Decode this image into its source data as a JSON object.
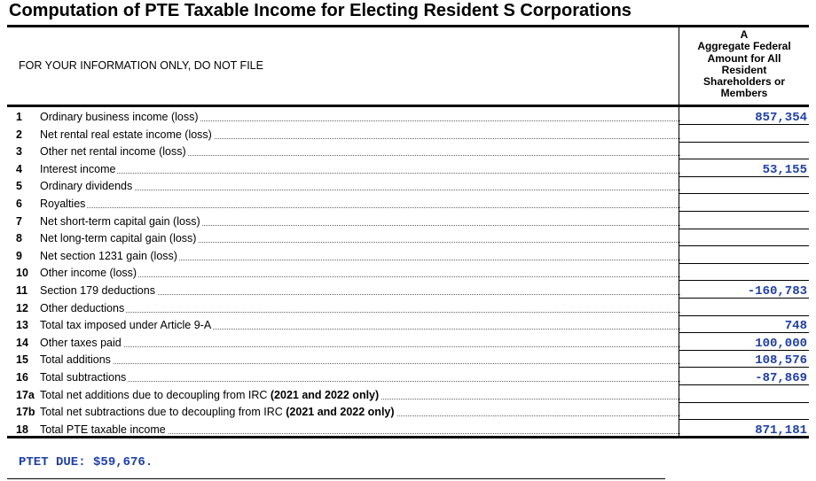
{
  "form": {
    "title": "Computation of PTE Taxable Income for Electing Resident S Corporations",
    "info_note": "FOR YOUR INFORMATION ONLY, DO NOT FILE",
    "column_header": {
      "letter": "A",
      "lines": [
        "Aggregate Federal",
        "Amount for All",
        "Resident",
        "Shareholders or",
        "Members"
      ]
    }
  },
  "rows": [
    {
      "num": "1",
      "label": "Ordinary business income (loss)",
      "value": "857,354"
    },
    {
      "num": "2",
      "label": "Net rental real estate income (loss)",
      "value": ""
    },
    {
      "num": "3",
      "label": "Other net rental income (loss)",
      "value": ""
    },
    {
      "num": "4",
      "label": "Interest income",
      "value": "53,155"
    },
    {
      "num": "5",
      "label": "Ordinary dividends",
      "value": ""
    },
    {
      "num": "6",
      "label": "Royalties",
      "value": ""
    },
    {
      "num": "7",
      "label": "Net short-term capital gain (loss)",
      "value": ""
    },
    {
      "num": "8",
      "label": "Net long-term capital gain (loss)",
      "value": ""
    },
    {
      "num": "9",
      "label": "Net section 1231 gain (loss)",
      "value": ""
    },
    {
      "num": "10",
      "label": "Other income (loss)",
      "value": ""
    },
    {
      "num": "11",
      "label": "Section 179 deductions",
      "value": "-160,783"
    },
    {
      "num": "12",
      "label": "Other deductions",
      "value": ""
    },
    {
      "num": "13",
      "label": "Total tax imposed under Article 9-A",
      "value": "748"
    },
    {
      "num": "14",
      "label": "Other taxes paid",
      "value": "100,000"
    },
    {
      "num": "15",
      "label": "Total additions",
      "value": "108,576"
    },
    {
      "num": "16",
      "label": "Total subtractions",
      "value": "-87,869"
    },
    {
      "num": "17a",
      "label": "Total net additions due to decoupling from IRC",
      "label_bold": "(2021 and 2022 only)",
      "value": ""
    },
    {
      "num": "17b",
      "label": "Total net subtractions due to decoupling from IRC",
      "label_bold": "(2021 and 2022 only)",
      "value": ""
    },
    {
      "num": "18",
      "label": "Total PTE taxable income",
      "value": "871,181"
    }
  ],
  "footer": {
    "ptet_due": "PTET DUE: $59,676."
  }
}
